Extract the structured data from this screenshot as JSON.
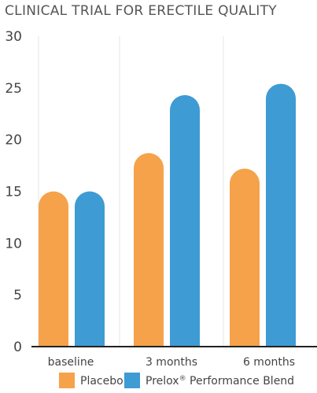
{
  "chart_data": {
    "type": "bar",
    "title": "CLINICAL TRIAL FOR ERECTILE QUALITY",
    "xlabel": "",
    "ylabel": "",
    "categories": [
      "baseline",
      "3 months",
      "6 months"
    ],
    "series": [
      {
        "name": "Placebo",
        "color": "#F6A24A",
        "values": [
          15,
          18.7,
          17.2
        ]
      },
      {
        "name_main": "Prelox",
        "name_sup": "®",
        "name_rest": " Performance Blend",
        "color": "#3E9BD4",
        "values": [
          15,
          24.3,
          25.4
        ]
      }
    ],
    "ylim": [
      0,
      30
    ],
    "yticks": [
      "0",
      "5",
      "10",
      "15",
      "20",
      "25",
      "30"
    ],
    "grid": "vertical",
    "legend_position": "bottom"
  }
}
